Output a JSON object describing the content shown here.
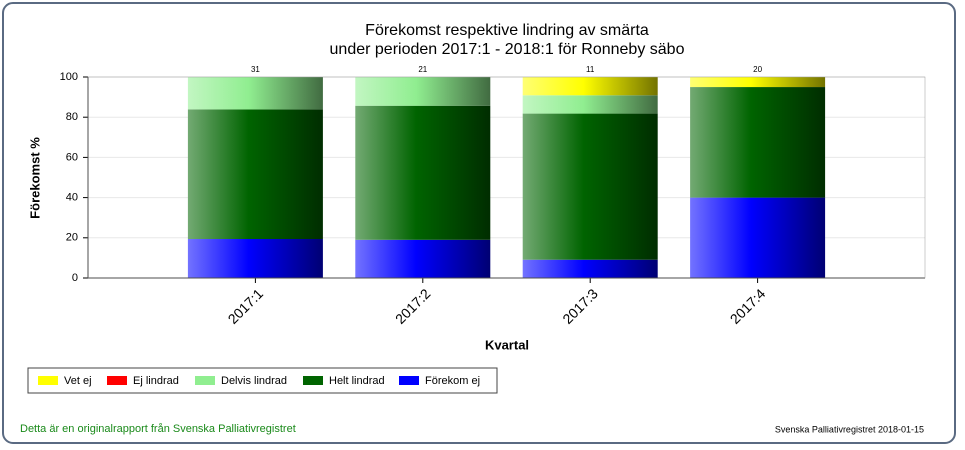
{
  "chart_data": {
    "type": "stacked_bar",
    "title": [
      "Förekomst respektive lindring av smärta",
      "under perioden 2017:1 - 2018:1 för Ronneby säbo"
    ],
    "x_label": "Kvartal",
    "y_label": "Förekomst %",
    "categories": [
      "2017:1",
      "2017:2",
      "2017:3",
      "2017:4"
    ],
    "bar_labels": [
      31,
      21,
      11,
      20
    ],
    "series": [
      {
        "name": "Förekom ej",
        "color": "#0000ff",
        "values": [
          19.4,
          19.0,
          9.1,
          40
        ]
      },
      {
        "name": "Helt lindrad",
        "color": "#006400",
        "values": [
          64.5,
          66.7,
          72.7,
          55
        ]
      },
      {
        "name": "Delvis lindrad",
        "color": "#90ee90",
        "values": [
          16.1,
          14.3,
          9.1,
          0
        ]
      },
      {
        "name": "Ej lindrad",
        "color": "#ff0000",
        "values": [
          0,
          0,
          0,
          0
        ]
      },
      {
        "name": "Vet ej",
        "color": "#ffff00",
        "values": [
          0,
          0,
          9.1,
          5
        ]
      }
    ],
    "ylim": [
      0,
      100
    ],
    "yticks": [
      0,
      20,
      40,
      60,
      80,
      100
    ],
    "grid": true,
    "footer_left": "Detta är en originalrapport från Svenska Palliativregistret",
    "footer_right": "Svenska Palliativregistret 2018-01-15"
  }
}
